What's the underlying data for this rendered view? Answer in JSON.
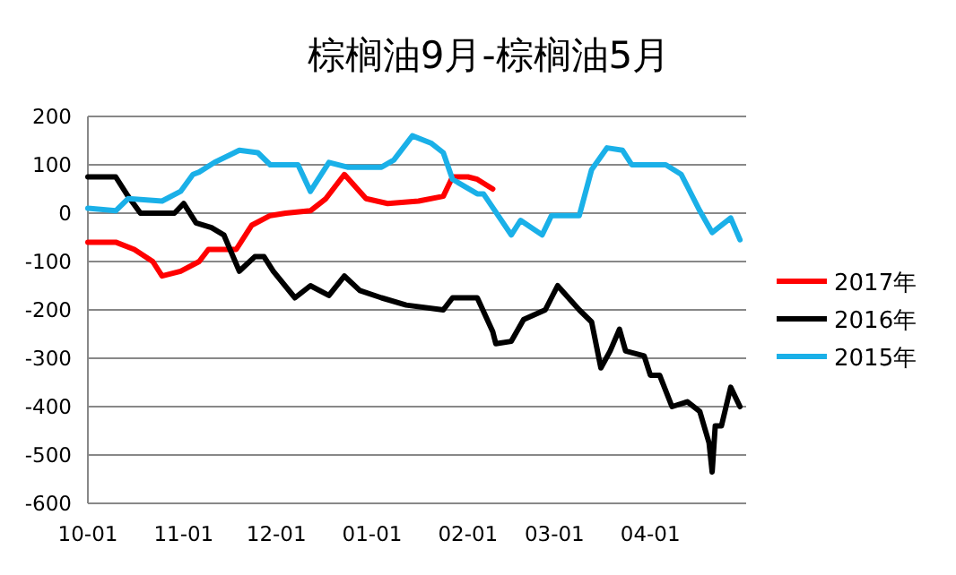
{
  "chart_data": {
    "type": "line",
    "title": "棕榈油9月-棕榈油5月",
    "xlim": [
      "2016-10-01",
      "2017-05-02"
    ],
    "xticks": [
      {
        "value": "2016-10-01",
        "label": "10-01"
      },
      {
        "value": "2016-11-01",
        "label": "11-01"
      },
      {
        "value": "2016-12-01",
        "label": "12-01"
      },
      {
        "value": "2017-01-01",
        "label": "01-01"
      },
      {
        "value": "2017-02-01",
        "label": "02-01"
      },
      {
        "value": "2017-03-01",
        "label": "03-01"
      },
      {
        "value": "2017-04-01",
        "label": "04-01"
      }
    ],
    "ylim": [
      -600,
      200
    ],
    "yticks": [
      -600,
      -500,
      -400,
      -300,
      -200,
      -100,
      0,
      100,
      200
    ],
    "grid": "y",
    "legend": "right",
    "marker": "none",
    "line_style": "solid",
    "series": [
      {
        "name": "2017年",
        "color": "#ff0000",
        "x": [
          "2016-10-01",
          "2016-10-10",
          "2016-10-16",
          "2016-10-22",
          "2016-10-25",
          "2016-10-31",
          "2016-11-06",
          "2016-11-09",
          "2016-11-18",
          "2016-11-23",
          "2016-11-29",
          "2016-12-04",
          "2016-12-12",
          "2016-12-17",
          "2016-12-23",
          "2016-12-30",
          "2017-01-06",
          "2017-01-16",
          "2017-01-24",
          "2017-01-27",
          "2017-02-01",
          "2017-02-04",
          "2017-02-09"
        ],
        "values": [
          -60,
          -60,
          -75,
          -100,
          -130,
          -120,
          -100,
          -75,
          -75,
          -25,
          -5,
          0,
          5,
          30,
          80,
          30,
          20,
          25,
          35,
          75,
          75,
          70,
          50
        ]
      },
      {
        "name": "2016年",
        "color": "#000000",
        "x": [
          "2016-10-01",
          "2016-10-10",
          "2016-10-14",
          "2016-10-18",
          "2016-10-29",
          "2016-11-01",
          "2016-11-05",
          "2016-11-10",
          "2016-11-14",
          "2016-11-19",
          "2016-11-24",
          "2016-11-27",
          "2016-11-30",
          "2016-12-07",
          "2016-12-12",
          "2016-12-18",
          "2016-12-23",
          "2016-12-28",
          "2017-01-04",
          "2017-01-12",
          "2017-01-24",
          "2017-01-27",
          "2017-02-04",
          "2017-02-09",
          "2017-02-10",
          "2017-02-15",
          "2017-02-19",
          "2017-02-26",
          "2017-03-02",
          "2017-03-09",
          "2017-03-13",
          "2017-03-16",
          "2017-03-19",
          "2017-03-22",
          "2017-03-24",
          "2017-03-30",
          "2017-04-01",
          "2017-04-04",
          "2017-04-08",
          "2017-04-13",
          "2017-04-17",
          "2017-04-20",
          "2017-04-21",
          "2017-04-22",
          "2017-04-24",
          "2017-04-27",
          "2017-04-30"
        ],
        "values": [
          75,
          75,
          35,
          0,
          0,
          20,
          -20,
          -30,
          -45,
          -120,
          -90,
          -90,
          -120,
          -175,
          -150,
          -170,
          -130,
          -160,
          -175,
          -190,
          -200,
          -175,
          -175,
          -245,
          -270,
          -265,
          -220,
          -200,
          -150,
          -200,
          -225,
          -320,
          -285,
          -240,
          -285,
          -295,
          -335,
          -335,
          -400,
          -390,
          -410,
          -475,
          -535,
          -440,
          -440,
          -360,
          -400
        ]
      },
      {
        "name": "2015年",
        "color": "#1ab0e8",
        "x": [
          "2016-10-01",
          "2016-10-10",
          "2016-10-14",
          "2016-10-25",
          "2016-10-31",
          "2016-11-04",
          "2016-11-06",
          "2016-11-11",
          "2016-11-19",
          "2016-11-25",
          "2016-11-29",
          "2016-12-08",
          "2016-12-12",
          "2016-12-18",
          "2016-12-24",
          "2017-01-04",
          "2017-01-08",
          "2017-01-14",
          "2017-01-20",
          "2017-01-24",
          "2017-01-27",
          "2017-02-04",
          "2017-02-06",
          "2017-02-15",
          "2017-02-18",
          "2017-02-25",
          "2017-02-28",
          "2017-03-03",
          "2017-03-09",
          "2017-03-13",
          "2017-03-18",
          "2017-03-23",
          "2017-03-26",
          "2017-04-06",
          "2017-04-11",
          "2017-04-17",
          "2017-04-21",
          "2017-04-27",
          "2017-04-30"
        ],
        "values": [
          10,
          5,
          30,
          25,
          45,
          80,
          85,
          105,
          130,
          125,
          100,
          100,
          45,
          105,
          95,
          95,
          110,
          160,
          145,
          125,
          70,
          40,
          40,
          -45,
          -15,
          -45,
          -5,
          -5,
          -5,
          90,
          135,
          130,
          100,
          100,
          80,
          5,
          -40,
          -10,
          -55
        ]
      }
    ]
  }
}
